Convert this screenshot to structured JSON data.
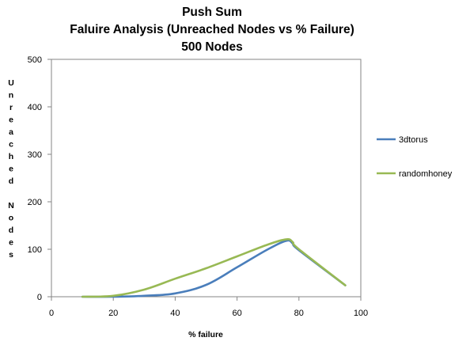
{
  "chart_data": {
    "type": "line",
    "title_lines": [
      "Push Sum",
      "Faluire Analysis (Unreached Nodes vs % Failure)",
      "500 Nodes"
    ],
    "xlabel": "% failure",
    "ylabel": "Unreached Nodes",
    "xlim": [
      0,
      100
    ],
    "ylim": [
      0,
      500
    ],
    "x_ticks": [
      "0",
      "20",
      "40",
      "60",
      "80",
      "100"
    ],
    "y_ticks": [
      "0",
      "100",
      "200",
      "300",
      "400",
      "500"
    ],
    "grid": false,
    "legend_position": "right",
    "series": [
      {
        "name": "3dtorus",
        "color": "#4a7ebb",
        "x": [
          10,
          20,
          30,
          40,
          50,
          60,
          70,
          76,
          78,
          80,
          95
        ],
        "y": [
          0,
          0,
          2,
          7,
          25,
          62,
          100,
          118,
          112,
          98,
          24
        ]
      },
      {
        "name": "randomhoney",
        "color": "#98b954",
        "x": [
          10,
          20,
          30,
          40,
          50,
          60,
          70,
          76,
          78,
          80,
          95
        ],
        "y": [
          0,
          2,
          15,
          38,
          60,
          85,
          110,
          121,
          115,
          100,
          24
        ]
      }
    ]
  }
}
